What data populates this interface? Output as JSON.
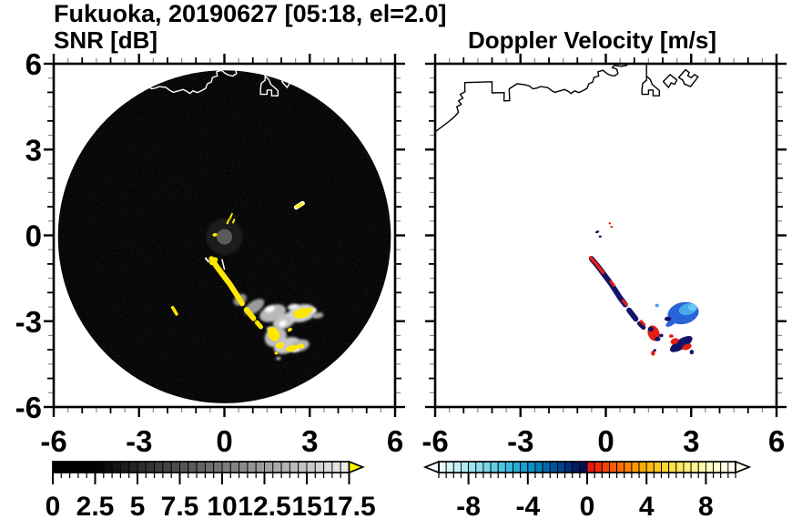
{
  "title": "Fukuoka, 20190627 [05:18, el=2.0]",
  "panels": {
    "snr": {
      "subtitle": "SNR [dB]"
    },
    "vel": {
      "subtitle": "Doppler Velocity [m/s]"
    }
  },
  "axes": {
    "xlim": [
      -6,
      6
    ],
    "ylim": [
      -6,
      6
    ],
    "x_tick_labels": [
      "-6",
      "-3",
      "0",
      "3",
      "6"
    ],
    "x_tick_values": [
      -6,
      -3,
      0,
      3,
      6
    ],
    "y_tick_labels": [
      "6",
      "3",
      "0",
      "-3",
      "-6"
    ],
    "y_tick_values": [
      6,
      3,
      0,
      -3,
      -6
    ],
    "major_step": 3,
    "minor_step": 0.5
  },
  "coastline": {
    "mainland": [
      [
        -6.0,
        3.62
      ],
      [
        -5.52,
        3.98
      ],
      [
        -5.35,
        4.12
      ],
      [
        -5.18,
        4.3
      ],
      [
        -5.24,
        4.5
      ],
      [
        -5.08,
        4.58
      ],
      [
        -5.18,
        4.7
      ],
      [
        -5.02,
        4.8
      ],
      [
        -5.12,
        4.93
      ],
      [
        -4.95,
        5.02
      ],
      [
        -4.96,
        5.34
      ],
      [
        -4.0,
        5.37
      ],
      [
        -4.0,
        4.98
      ],
      [
        -3.57,
        4.99
      ],
      [
        -3.58,
        4.7
      ],
      [
        -3.38,
        4.71
      ],
      [
        -3.4,
        5.12
      ],
      [
        -3.12,
        5.3
      ],
      [
        -2.88,
        5.27
      ],
      [
        -2.7,
        5.23
      ],
      [
        -2.56,
        5.12
      ],
      [
        -2.42,
        5.15
      ],
      [
        -2.3,
        5.2
      ],
      [
        -2.05,
        5.17
      ],
      [
        -1.92,
        5.07
      ],
      [
        -1.8,
        5.0
      ],
      [
        -1.62,
        5.05
      ],
      [
        -1.45,
        5.1
      ],
      [
        -1.3,
        5.02
      ],
      [
        -1.22,
        4.96
      ],
      [
        -1.1,
        5.05
      ],
      [
        -0.95,
        4.99
      ],
      [
        -0.8,
        5.06
      ],
      [
        -0.66,
        5.14
      ],
      [
        -0.6,
        5.3
      ],
      [
        -0.46,
        5.36
      ],
      [
        -0.42,
        5.52
      ],
      [
        -0.25,
        5.57
      ],
      [
        -0.28,
        5.72
      ],
      [
        -0.1,
        5.77
      ],
      [
        0.02,
        5.67
      ],
      [
        0.16,
        5.6
      ],
      [
        0.3,
        5.57
      ],
      [
        0.43,
        5.66
      ],
      [
        0.38,
        5.81
      ],
      [
        0.22,
        5.87
      ],
      [
        0.3,
        5.94
      ],
      [
        0.55,
        5.91
      ],
      [
        0.72,
        5.94
      ],
      [
        0.84,
        6.05
      ]
    ],
    "jetty": [
      [
        1.43,
        6.05
      ],
      [
        1.43,
        5.42
      ],
      [
        1.3,
        5.32
      ],
      [
        1.27,
        5.12
      ],
      [
        1.27,
        4.93
      ],
      [
        1.5,
        4.93
      ],
      [
        1.5,
        5.08
      ],
      [
        1.66,
        5.08
      ],
      [
        1.66,
        4.88
      ],
      [
        1.88,
        4.88
      ],
      [
        1.88,
        5.06
      ],
      [
        1.76,
        5.17
      ],
      [
        1.63,
        5.28
      ],
      [
        1.56,
        5.45
      ],
      [
        1.45,
        5.55
      ]
    ],
    "island1": [
      [
        2.02,
        5.38
      ],
      [
        2.26,
        5.62
      ],
      [
        2.5,
        5.43
      ],
      [
        2.42,
        5.28
      ],
      [
        2.3,
        5.33
      ],
      [
        2.2,
        5.17
      ],
      [
        2.02,
        5.38
      ]
    ],
    "island2": [
      [
        2.56,
        5.52
      ],
      [
        2.8,
        5.79
      ],
      [
        2.93,
        5.69
      ],
      [
        2.88,
        5.58
      ],
      [
        3.0,
        5.51
      ],
      [
        3.12,
        5.62
      ],
      [
        3.24,
        5.54
      ],
      [
        2.98,
        5.2
      ],
      [
        2.76,
        5.29
      ],
      [
        2.7,
        5.43
      ],
      [
        2.56,
        5.52
      ]
    ]
  },
  "chart_data": [
    {
      "type": "heatmap",
      "title": "SNR [dB]",
      "xlim": [
        -6,
        6
      ],
      "ylim": [
        -6,
        6
      ],
      "coastline_color": "#ffffff",
      "scan_disc": {
        "cx": 0.0,
        "cy": -0.05,
        "radius": 5.85,
        "color": "#070707"
      },
      "radar_origin": {
        "x": 0.0,
        "y": -0.05,
        "radius_px": 8.5,
        "color": "#5a5a5a",
        "halo_color": "#1d1d1d"
      },
      "echo_blobs_soft": [
        [
          0.55,
          -2.25,
          0.25,
          0.18,
          -35,
          "#909090"
        ],
        [
          1.05,
          -2.5,
          0.4,
          0.2,
          -35,
          "#9c9c9c"
        ],
        [
          1.7,
          -2.72,
          0.48,
          0.28,
          -20,
          "#b8b8b8"
        ],
        [
          2.1,
          -3.0,
          0.42,
          0.26,
          -25,
          "#c2c2c2"
        ],
        [
          2.72,
          -2.72,
          0.5,
          0.3,
          -14,
          "#cfcfcf"
        ],
        [
          3.28,
          -2.8,
          0.2,
          0.1,
          -10,
          "#ababab"
        ],
        [
          1.8,
          -3.55,
          0.4,
          0.34,
          -30,
          "#bdbdbd"
        ],
        [
          2.2,
          -3.85,
          0.48,
          0.26,
          -20,
          "#c8c8c8"
        ],
        [
          2.66,
          -3.85,
          0.33,
          0.2,
          -15,
          "#b5b5b5"
        ],
        [
          1.6,
          -2.58,
          0.18,
          0.1,
          -20,
          "#ffffff"
        ],
        [
          2.05,
          -3.08,
          0.15,
          0.1,
          -25,
          "#fafafa"
        ],
        [
          2.42,
          -2.5,
          0.2,
          0.1,
          -10,
          "#f0f0f0"
        ],
        [
          1.62,
          -3.28,
          0.13,
          0.09,
          0,
          "#ffffff"
        ],
        [
          2.5,
          -4.0,
          0.15,
          0.08,
          -20,
          "#f5f5f5"
        ],
        [
          3.1,
          -2.62,
          0.14,
          0.08,
          0,
          "#ededed"
        ],
        [
          1.9,
          -4.3,
          0.08,
          0.05,
          0,
          "#e0e0e0"
        ]
      ],
      "echo_blobs": [
        [
          -0.38,
          -0.9,
          0.17,
          0.11,
          -40,
          "#ffe800"
        ],
        [
          2.72,
          -2.72,
          0.3,
          0.17,
          -12,
          "#ffe800"
        ],
        [
          3.0,
          -2.6,
          0.12,
          0.08,
          0,
          "#ffe800"
        ],
        [
          1.73,
          -3.45,
          0.19,
          0.26,
          -25,
          "#ffe800"
        ],
        [
          1.95,
          -3.85,
          0.15,
          0.11,
          -20,
          "#ffe800"
        ],
        [
          2.37,
          -3.95,
          0.21,
          0.11,
          -15,
          "#ffe800"
        ],
        [
          2.68,
          -3.87,
          0.12,
          0.09,
          0,
          "#ffe800"
        ],
        [
          1.82,
          -4.12,
          0.06,
          0.05,
          0,
          "#ffe800"
        ],
        [
          2.3,
          -3.3,
          0.09,
          0.06,
          -30,
          "#ffe800"
        ],
        [
          -0.33,
          0.02,
          0.09,
          0.06,
          -10,
          "#ffe800"
        ]
      ],
      "echo_strokes": [
        {
          "c": "#ffe800",
          "w": 6,
          "pts": [
            [
              -0.45,
              -0.82
            ],
            [
              -0.28,
              -1.08
            ],
            [
              -0.05,
              -1.38
            ],
            [
              0.2,
              -1.72
            ],
            [
              0.48,
              -2.15
            ],
            [
              0.62,
              -2.38
            ]
          ]
        },
        {
          "c": "#ffe800",
          "w": 6,
          "pts": [
            [
              0.78,
              -2.6
            ],
            [
              1.02,
              -2.9
            ]
          ]
        },
        {
          "c": "#ffe800",
          "w": 5,
          "pts": [
            [
              1.15,
              -3.05
            ],
            [
              1.28,
              -3.2
            ]
          ]
        },
        {
          "c": "#ffffff",
          "w": 2,
          "pts": [
            [
              -0.66,
              -0.8
            ],
            [
              -0.56,
              -0.92
            ]
          ]
        },
        {
          "c": "#ffffff",
          "w": 1.5,
          "pts": [
            [
              -0.08,
              -0.85
            ],
            [
              0.0,
              -1.18
            ]
          ]
        },
        {
          "c": "#ffe800",
          "w": 2,
          "pts": [
            [
              0.1,
              0.42
            ],
            [
              0.16,
              0.55
            ]
          ]
        },
        {
          "c": "#ffe800",
          "w": 2,
          "pts": [
            [
              0.2,
              0.6
            ],
            [
              0.27,
              0.75
            ]
          ]
        },
        {
          "c": "#ffe800",
          "w": 2,
          "pts": [
            [
              0.3,
              0.45
            ],
            [
              0.35,
              0.55
            ]
          ]
        },
        {
          "c": "#ffe800",
          "w": 3.5,
          "pts": [
            [
              -1.82,
              -2.52
            ],
            [
              -1.68,
              -2.75
            ]
          ]
        },
        {
          "c": "#ffffff",
          "w": 5,
          "pts": [
            [
              2.52,
              0.98
            ],
            [
              2.75,
              1.12
            ]
          ]
        },
        {
          "c": "#ffe800",
          "w": 3,
          "pts": [
            [
              2.54,
              0.99
            ],
            [
              2.73,
              1.1
            ]
          ]
        }
      ],
      "colorbar": {
        "range": [
          0,
          17.5
        ],
        "cell_step": 0.5,
        "labels": [
          "0",
          "2.5",
          "5",
          "7.5",
          "10",
          "12.5",
          "15",
          "17.5"
        ],
        "label_values": [
          0,
          2.5,
          5,
          7.5,
          10,
          12.5,
          15,
          17.5
        ],
        "major_tick_step": 2.5,
        "over_arrow_color": "#ffff00",
        "cells": [
          "#000000",
          "#000000",
          "#000000",
          "#000000",
          "#000000",
          "#040404",
          "#0c0c0c",
          "#141414",
          "#1c1c1c",
          "#242424",
          "#2c2c2c",
          "#343434",
          "#3c3c3c",
          "#444444",
          "#4c4c4c",
          "#545454",
          "#5c5c5c",
          "#646464",
          "#6c6c6c",
          "#747474",
          "#7c7c7c",
          "#838383",
          "#8b8b8b",
          "#939393",
          "#9b9b9b",
          "#a3a3a3",
          "#ababab",
          "#b3b3b3",
          "#bbbbbb",
          "#c3c3c3",
          "#cbcbcb",
          "#d3d3d3",
          "#dbdbdb",
          "#e3e3e3",
          "#ebebeb"
        ]
      }
    },
    {
      "type": "heatmap",
      "title": "Doppler Velocity [m/s]",
      "xlim": [
        -6,
        6
      ],
      "ylim": [
        -6,
        6
      ],
      "coastline_color": "#000000",
      "echo_blobs": [
        [
          2.72,
          -2.72,
          0.55,
          0.38,
          -12,
          "#2a62d8"
        ],
        [
          2.88,
          -2.58,
          0.32,
          0.2,
          -15,
          "#47a9e8"
        ],
        [
          3.05,
          -2.52,
          0.16,
          0.12,
          0,
          "#6cc8f2"
        ],
        [
          2.3,
          -3.05,
          0.22,
          0.1,
          -35,
          "#2a62d8"
        ],
        [
          1.8,
          -2.45,
          0.07,
          0.06,
          0,
          "#47a9e8"
        ],
        [
          2.18,
          -2.92,
          0.12,
          0.08,
          0,
          "#131368"
        ],
        [
          1.68,
          -3.42,
          0.2,
          0.28,
          -20,
          "#e81d10"
        ],
        [
          1.58,
          -3.28,
          0.1,
          0.09,
          0,
          "#131368"
        ],
        [
          1.82,
          -3.62,
          0.1,
          0.08,
          0,
          "#131368"
        ],
        [
          1.95,
          -3.5,
          0.07,
          0.06,
          0,
          "#131368"
        ],
        [
          1.66,
          -4.12,
          0.07,
          0.09,
          0,
          "#e81d10"
        ],
        [
          1.72,
          -4.02,
          0.05,
          0.05,
          0,
          "#131368"
        ],
        [
          2.65,
          -3.8,
          0.45,
          0.18,
          -32,
          "#131368"
        ],
        [
          2.42,
          -3.7,
          0.15,
          0.1,
          -20,
          "#e81d10"
        ],
        [
          2.85,
          -3.9,
          0.17,
          0.1,
          -20,
          "#e81d10"
        ],
        [
          2.3,
          -3.52,
          0.08,
          0.06,
          0,
          "#e81d10"
        ],
        [
          3.02,
          -4.08,
          0.07,
          0.08,
          0,
          "#131368"
        ],
        [
          -0.3,
          0.12,
          0.07,
          0.04,
          -20,
          "#131368"
        ],
        [
          -0.2,
          -0.04,
          0.05,
          0.04,
          0,
          "#131368"
        ],
        [
          0.14,
          0.42,
          0.04,
          0.04,
          0,
          "#e81d10"
        ],
        [
          0.2,
          0.3,
          0.04,
          0.04,
          0,
          "#e81d10"
        ]
      ],
      "echo_strokes": [
        {
          "c": "#131368",
          "w": 6,
          "pts": [
            [
              -0.5,
              -0.82
            ],
            [
              -0.28,
              -1.08
            ],
            [
              -0.05,
              -1.38
            ],
            [
              0.2,
              -1.72
            ],
            [
              0.5,
              -2.18
            ],
            [
              0.68,
              -2.42
            ]
          ]
        },
        {
          "c": "#131368",
          "w": 6,
          "pts": [
            [
              0.82,
              -2.62
            ],
            [
              1.05,
              -2.92
            ]
          ]
        },
        {
          "c": "#131368",
          "w": 5,
          "pts": [
            [
              1.18,
              -3.08
            ],
            [
              1.32,
              -3.22
            ]
          ]
        },
        {
          "c": "#e81d10",
          "w": 3.5,
          "pts": [
            [
              -0.54,
              -0.78
            ],
            [
              -0.33,
              -1.0
            ],
            [
              -0.1,
              -1.3
            ]
          ]
        },
        {
          "c": "#e81d10",
          "w": 3,
          "pts": [
            [
              0.18,
              -1.62
            ],
            [
              0.28,
              -1.75
            ]
          ]
        },
        {
          "c": "#e81d10",
          "w": 3,
          "pts": [
            [
              0.6,
              -2.28
            ],
            [
              0.72,
              -2.42
            ]
          ]
        },
        {
          "c": "#e81d10",
          "w": 3,
          "pts": [
            [
              1.24,
              -3.0
            ],
            [
              1.35,
              -3.12
            ]
          ]
        }
      ],
      "colorbar": {
        "range": [
          -10,
          10
        ],
        "cell_step": 0.5,
        "labels": [
          "-8",
          "-4",
          "0",
          "4",
          "8"
        ],
        "label_values": [
          -8,
          -4,
          0,
          4,
          8
        ],
        "major_tick_values": [
          -8,
          -4,
          0,
          4,
          8
        ],
        "under_arrow_color": "#f0fcfd",
        "over_arrow_color": "#fffdf2",
        "cells": [
          "#eafafb",
          "#d8f5f8",
          "#c5f0f5",
          "#b2eaf2",
          "#9fe4ef",
          "#8cdeec",
          "#78d7e9",
          "#63cfe5",
          "#4ec6e1",
          "#39bbdc",
          "#27aed6",
          "#189fce",
          "#0d8ec5",
          "#067cba",
          "#0269ad",
          "#00569e",
          "#00438e",
          "#00307c",
          "#001e68",
          "#0a0f52",
          "#e81810",
          "#ee2d0c",
          "#f34309",
          "#f75906",
          "#fa6e04",
          "#fc8402",
          "#fe9901",
          "#ffae00",
          "#ffbc0e",
          "#ffc922",
          "#ffd536",
          "#ffdf4c",
          "#ffe763",
          "#ffee7a",
          "#fff392",
          "#fff7a9",
          "#fffabf",
          "#fffcd2",
          "#fffde2",
          "#fffeef"
        ]
      }
    }
  ],
  "colors": {
    "frame": "#000000",
    "background": "#ffffff",
    "half_tick": "#8a8a8a"
  }
}
